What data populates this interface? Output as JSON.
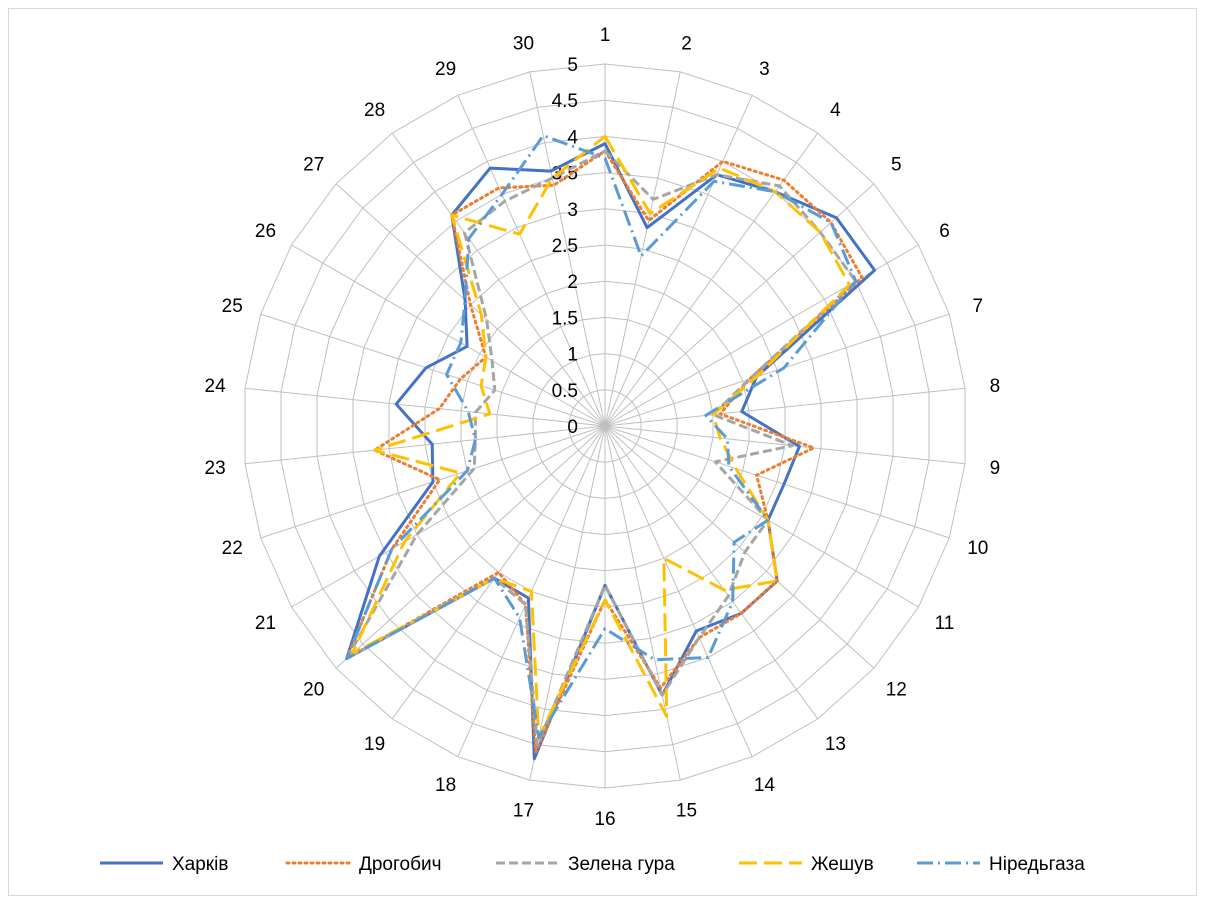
{
  "chart_data": {
    "type": "radar",
    "categories": [
      "1",
      "2",
      "3",
      "4",
      "5",
      "6",
      "7",
      "8",
      "9",
      "10",
      "11",
      "12",
      "13",
      "14",
      "15",
      "16",
      "17",
      "18",
      "19",
      "20",
      "21",
      "22",
      "23",
      "24",
      "25",
      "26",
      "27",
      "28",
      "29",
      "30"
    ],
    "rlim": [
      0,
      5
    ],
    "rticks": [
      "0",
      "0.5",
      "1",
      "1.5",
      "2",
      "2.5",
      "3",
      "3.5",
      "4",
      "4.5",
      "5"
    ],
    "grid": true,
    "legend_position": "bottom",
    "series": [
      {
        "name": "Харків",
        "color": "#4472c4",
        "dash": "solid",
        "values": [
          3.9,
          2.8,
          3.8,
          4.0,
          4.3,
          4.3,
          2.2,
          1.9,
          2.7,
          2.6,
          2.6,
          3.2,
          3.2,
          3.1,
          3.8,
          2.2,
          4.7,
          2.6,
          2.6,
          4.8,
          3.6,
          2.5,
          2.4,
          2.9,
          2.6,
          2.2,
          2.6,
          3.6,
          3.9,
          3.6
        ]
      },
      {
        "name": "Дрогобич",
        "color": "#ed7d31",
        "dash": "dot",
        "values": [
          3.8,
          2.9,
          4.0,
          4.2,
          4.2,
          4.1,
          2.1,
          1.6,
          2.9,
          2.2,
          2.6,
          3.2,
          3.2,
          3.2,
          3.7,
          2.4,
          4.6,
          2.7,
          2.5,
          4.8,
          3.4,
          2.4,
          3.2,
          2.3,
          2.1,
          1.9,
          2.5,
          3.6,
          3.6,
          3.4
        ]
      },
      {
        "name": "Зелена гура",
        "color": "#a5a5a5",
        "dash": "dash",
        "values": [
          3.8,
          3.2,
          3.8,
          4.1,
          4.0,
          4.0,
          2.1,
          1.5,
          2.6,
          1.6,
          2.6,
          2.6,
          2.9,
          3.2,
          3.8,
          2.2,
          4.5,
          2.7,
          2.6,
          4.8,
          3.0,
          1.9,
          1.8,
          1.8,
          1.6,
          1.8,
          2.2,
          3.3,
          3.4,
          3.5
        ]
      },
      {
        "name": "Жешув",
        "color": "#ffc000",
        "dash": "longdash",
        "values": [
          4.0,
          3.0,
          3.9,
          4.0,
          4.0,
          3.9,
          2.2,
          1.5,
          1.6,
          1.9,
          2.6,
          3.2,
          2.8,
          2.0,
          4.1,
          2.4,
          4.4,
          2.5,
          2.6,
          4.7,
          3.2,
          2.1,
          3.2,
          1.6,
          1.8,
          1.9,
          2.3,
          3.6,
          2.9,
          3.5
        ]
      },
      {
        "name": "Ніредьгаза",
        "color": "#5b9bd5",
        "dash": "dashdot",
        "values": [
          3.7,
          2.4,
          3.7,
          4.0,
          4.2,
          4.0,
          2.6,
          1.4,
          1.7,
          1.8,
          2.6,
          2.4,
          3.0,
          3.5,
          3.3,
          2.8,
          4.4,
          2.9,
          2.6,
          4.8,
          3.4,
          2.0,
          1.8,
          1.9,
          2.3,
          2.3,
          2.6,
          3.2,
          3.5,
          4.1
        ]
      }
    ]
  }
}
